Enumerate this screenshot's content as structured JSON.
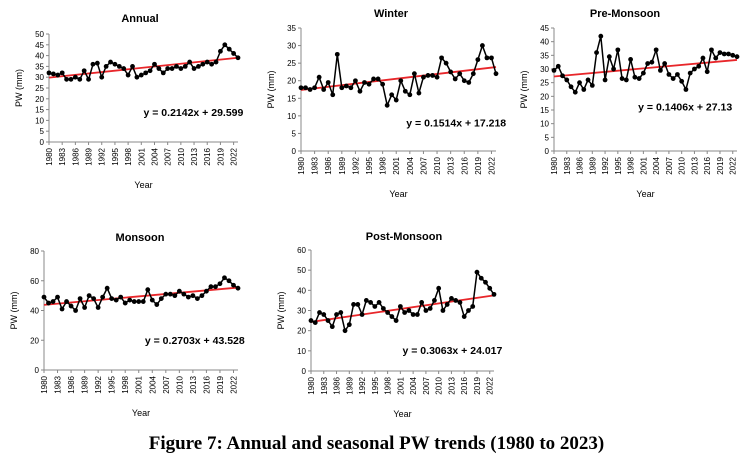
{
  "figure": {
    "caption": "Figure 7: Annual and seasonal PW trends (1980 to 2023)",
    "trend_color": "#e8262a",
    "point_color": "#000000"
  },
  "chart_data": [
    {
      "type": "line",
      "title": "Annual",
      "xlabel": "Year",
      "ylabel": "PW (mm)",
      "ylim": [
        0,
        50
      ],
      "yticks": [
        0,
        5,
        10,
        15,
        20,
        25,
        30,
        35,
        40,
        45,
        50
      ],
      "xlim": [
        1980,
        2023
      ],
      "xticks": [
        1980,
        1983,
        1986,
        1989,
        1992,
        1995,
        1998,
        2001,
        2004,
        2007,
        2010,
        2013,
        2016,
        2019,
        2022
      ],
      "grid": false,
      "series": [
        {
          "x": [
            1980,
            1981,
            1982,
            1983,
            1984,
            1985,
            1986,
            1987,
            1988,
            1989,
            1990,
            1991,
            1992,
            1993,
            1994,
            1995,
            1996,
            1997,
            1998,
            1999,
            2000,
            2001,
            2002,
            2003,
            2004,
            2005,
            2006,
            2007,
            2008,
            2009,
            2010,
            2011,
            2012,
            2013,
            2014,
            2015,
            2016,
            2017,
            2018,
            2019,
            2020,
            2021,
            2022,
            2023
          ],
          "values": [
            32,
            31.5,
            31,
            32,
            29,
            29,
            30,
            29,
            33,
            29,
            36,
            36.5,
            30,
            35,
            37,
            36,
            35,
            34,
            31,
            35,
            30,
            31,
            32,
            33,
            36,
            34,
            32,
            34,
            34,
            35,
            34,
            35,
            37,
            34,
            35,
            36,
            37,
            36,
            37,
            42,
            45,
            43,
            41,
            39
          ]
        }
      ],
      "trendline": {
        "slope": 0.2142,
        "intercept": 29.599,
        "label": "y = 0.2142x + 29.599"
      }
    },
    {
      "type": "line",
      "title": "Winter",
      "xlabel": "Year",
      "ylabel": "PW (mm)",
      "ylim": [
        0,
        35
      ],
      "yticks": [
        0,
        5,
        10,
        15,
        20,
        25,
        30,
        35
      ],
      "xlim": [
        1980,
        2023
      ],
      "xticks": [
        1980,
        1983,
        1986,
        1989,
        1992,
        1995,
        1998,
        2001,
        2004,
        2007,
        2010,
        2013,
        2016,
        2019,
        2022
      ],
      "grid": false,
      "series": [
        {
          "x": [
            1980,
            1981,
            1982,
            1983,
            1984,
            1985,
            1986,
            1987,
            1988,
            1989,
            1990,
            1991,
            1992,
            1993,
            1994,
            1995,
            1996,
            1997,
            1998,
            1999,
            2000,
            2001,
            2002,
            2003,
            2004,
            2005,
            2006,
            2007,
            2008,
            2009,
            2010,
            2011,
            2012,
            2013,
            2014,
            2015,
            2016,
            2017,
            2018,
            2019,
            2020,
            2021,
            2022,
            2023
          ],
          "values": [
            18,
            18,
            17.5,
            18,
            21,
            17.5,
            19.5,
            16,
            27.5,
            18,
            18.5,
            18,
            20,
            17,
            19.5,
            19,
            20.5,
            20.5,
            19,
            13,
            16,
            14.5,
            20,
            17,
            16,
            22,
            16.5,
            21,
            21.5,
            21.5,
            21,
            26.5,
            25,
            22.5,
            20.5,
            22,
            20,
            19.5,
            22,
            26,
            30,
            26.5,
            26.5,
            22
          ]
        }
      ],
      "trendline": {
        "slope": 0.1514,
        "intercept": 17.218,
        "label": "y = 0.1514x + 17.218"
      }
    },
    {
      "type": "line",
      "title": "Pre-Monsoon",
      "xlabel": "Year",
      "ylabel": "PW (mm)",
      "ylim": [
        0,
        45
      ],
      "yticks": [
        0,
        5,
        10,
        15,
        20,
        25,
        30,
        35,
        40,
        45
      ],
      "xlim": [
        1980,
        2023
      ],
      "xticks": [
        1980,
        1983,
        1986,
        1989,
        1992,
        1995,
        1998,
        2001,
        2004,
        2007,
        2010,
        2013,
        2016,
        2019,
        2022
      ],
      "grid": false,
      "series": [
        {
          "x": [
            1980,
            1981,
            1982,
            1983,
            1984,
            1985,
            1986,
            1987,
            1988,
            1989,
            1990,
            1991,
            1992,
            1993,
            1994,
            1995,
            1996,
            1997,
            1998,
            1999,
            2000,
            2001,
            2002,
            2003,
            2004,
            2005,
            2006,
            2007,
            2008,
            2009,
            2010,
            2011,
            2012,
            2013,
            2014,
            2015,
            2016,
            2017,
            2018,
            2019,
            2020,
            2021,
            2022,
            2023
          ],
          "values": [
            29.5,
            31,
            27.5,
            26,
            23.5,
            21.5,
            25,
            22.5,
            26,
            24,
            36,
            42,
            26,
            34.5,
            30,
            37,
            26.5,
            26,
            33.5,
            27,
            26.5,
            28.5,
            32,
            32.5,
            37,
            29.5,
            32,
            28,
            26.5,
            28,
            25.5,
            22.5,
            28.5,
            30,
            31,
            34,
            29,
            37,
            34,
            36,
            35.5,
            35.5,
            35,
            34.5
          ]
        }
      ],
      "trendline": {
        "slope": 0.1406,
        "intercept": 27.13,
        "label": "y = 0.1406x + 27.13"
      }
    },
    {
      "type": "line",
      "title": "Monsoon",
      "xlabel": "Year",
      "ylabel": "PW (mm)",
      "ylim": [
        0,
        80
      ],
      "yticks": [
        0,
        20,
        40,
        60,
        80
      ],
      "xlim": [
        1980,
        2023
      ],
      "xticks": [
        1980,
        1983,
        1986,
        1989,
        1992,
        1995,
        1998,
        2001,
        2004,
        2007,
        2010,
        2013,
        2016,
        2019,
        2022
      ],
      "grid": false,
      "series": [
        {
          "x": [
            1980,
            1981,
            1982,
            1983,
            1984,
            1985,
            1986,
            1987,
            1988,
            1989,
            1990,
            1991,
            1992,
            1993,
            1994,
            1995,
            1996,
            1997,
            1998,
            1999,
            2000,
            2001,
            2002,
            2003,
            2004,
            2005,
            2006,
            2007,
            2008,
            2009,
            2010,
            2011,
            2012,
            2013,
            2014,
            2015,
            2016,
            2017,
            2018,
            2019,
            2020,
            2021,
            2022,
            2023
          ],
          "values": [
            49,
            45,
            46,
            49,
            41,
            46,
            43,
            40,
            48,
            42,
            50,
            48,
            42,
            49,
            55,
            48,
            47,
            49,
            45,
            47,
            46,
            46,
            46,
            54,
            47,
            44,
            48,
            51,
            51,
            50,
            53,
            51,
            49,
            50,
            48,
            50,
            53,
            56,
            56,
            58,
            62,
            60,
            57,
            55
          ]
        }
      ],
      "trendline": {
        "slope": 0.2703,
        "intercept": 43.528,
        "label": "y = 0.2703x + 43.528"
      }
    },
    {
      "type": "line",
      "title": "Post-Monsoon",
      "xlabel": "Year",
      "ylabel": "PW (mm)",
      "ylim": [
        0,
        60
      ],
      "yticks": [
        0,
        10,
        20,
        30,
        40,
        50,
        60
      ],
      "xlim": [
        1980,
        2023
      ],
      "xticks": [
        1980,
        1983,
        1986,
        1989,
        1992,
        1995,
        1998,
        2001,
        2004,
        2007,
        2010,
        2013,
        2016,
        2019,
        2022
      ],
      "grid": false,
      "series": [
        {
          "x": [
            1980,
            1981,
            1982,
            1983,
            1984,
            1985,
            1986,
            1987,
            1988,
            1989,
            1990,
            1991,
            1992,
            1993,
            1994,
            1995,
            1996,
            1997,
            1998,
            1999,
            2000,
            2001,
            2002,
            2003,
            2004,
            2005,
            2006,
            2007,
            2008,
            2009,
            2010,
            2011,
            2012,
            2013,
            2014,
            2015,
            2016,
            2017,
            2018,
            2019,
            2020,
            2021,
            2022,
            2023
          ],
          "values": [
            25,
            24,
            29,
            28,
            25,
            22,
            28,
            29,
            20,
            23,
            33,
            33,
            28,
            35,
            34,
            32,
            34,
            31,
            29,
            27,
            25,
            32,
            29,
            30,
            28,
            28,
            34,
            30,
            31,
            35,
            41,
            30,
            33,
            36,
            35,
            34,
            27,
            30,
            32,
            49,
            46,
            44,
            41,
            38
          ]
        }
      ],
      "trendline": {
        "slope": 0.3063,
        "intercept": 24.017,
        "label": "y = 0.3063x + 24.017"
      }
    }
  ]
}
